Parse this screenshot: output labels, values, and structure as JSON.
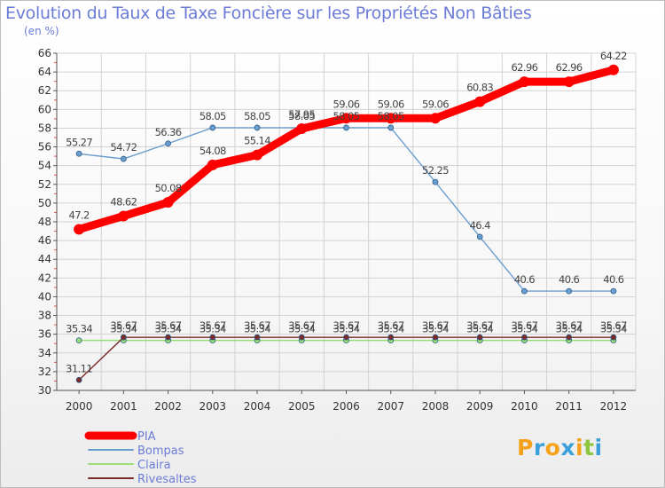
{
  "header": {
    "title": "Evolution du Taux de Taxe Foncière sur les Propriétés Non Bâties",
    "unit": "(en %)"
  },
  "logo": {
    "letters": [
      "P",
      "r",
      "o",
      "x",
      "i",
      "t",
      "i"
    ],
    "colors": [
      "#f5a21b",
      "#3aa0dc",
      "#f5a21b",
      "#3aa0dc",
      "#f5a21b",
      "#8cc63f",
      "#3aa0dc"
    ]
  },
  "chart_data": {
    "type": "line",
    "title": "Evolution du Taux de Taxe Foncière sur les Propriétés Non Bâties",
    "ylabel": "(en %)",
    "xlabel": "",
    "x": [
      "2000",
      "2001",
      "2002",
      "2003",
      "2004",
      "2005",
      "2006",
      "2007",
      "2008",
      "2009",
      "2010",
      "2011",
      "2012"
    ],
    "ylim": [
      30,
      66
    ],
    "yticks": [
      30,
      32,
      34,
      36,
      38,
      40,
      42,
      44,
      46,
      48,
      50,
      52,
      54,
      56,
      58,
      60,
      62,
      64,
      66
    ],
    "grid": true,
    "legend": "bottom-left",
    "series": [
      {
        "name": "PIA",
        "color": "#ff0000",
        "values": [
          47.2,
          48.62,
          50.08,
          54.08,
          55.14,
          57.95,
          59.06,
          59.06,
          59.06,
          60.83,
          62.96,
          62.96,
          64.22
        ],
        "labels": [
          "47.2",
          "48.62",
          "50.08",
          "54.08",
          "55.14",
          "57.95",
          "59.06",
          "59.06",
          "59.06",
          "60.83",
          "62.96",
          "62.96",
          "64.22"
        ]
      },
      {
        "name": "Bompas",
        "color": "#6b9ecf",
        "values": [
          55.27,
          54.72,
          56.36,
          58.05,
          58.05,
          58.05,
          58.05,
          58.05,
          52.25,
          46.4,
          40.6,
          40.6,
          40.6
        ],
        "labels": [
          "55.27",
          "54.72",
          "56.36",
          "58.05",
          "58.05",
          "58.05",
          "58.05",
          "58.05",
          "52.25",
          "46.4",
          "40.6",
          "40.6",
          "40.6"
        ]
      },
      {
        "name": "Claira",
        "color": "#99dd77",
        "values": [
          35.34,
          35.34,
          35.34,
          35.34,
          35.34,
          35.34,
          35.34,
          35.34,
          35.34,
          35.34,
          35.34,
          35.34,
          35.34
        ],
        "labels": [
          "35.34",
          "35.34",
          "35.34",
          "35.34",
          "35.34",
          "35.34",
          "35.34",
          "35.34",
          "35.34",
          "35.34",
          "35.34",
          "35.34",
          "35.34"
        ]
      },
      {
        "name": "Rivesaltes",
        "color": "#7a2a2a",
        "values": [
          31.11,
          35.67,
          35.67,
          35.67,
          35.67,
          35.67,
          35.67,
          35.67,
          35.67,
          35.67,
          35.67,
          35.67,
          35.67
        ],
        "labels": [
          "31.11",
          "35.67",
          "35.67",
          "35.67",
          "35.67",
          "35.67",
          "35.67",
          "35.67",
          "35.67",
          "35.67",
          "35.67",
          "35.67",
          "35.67"
        ]
      }
    ]
  }
}
